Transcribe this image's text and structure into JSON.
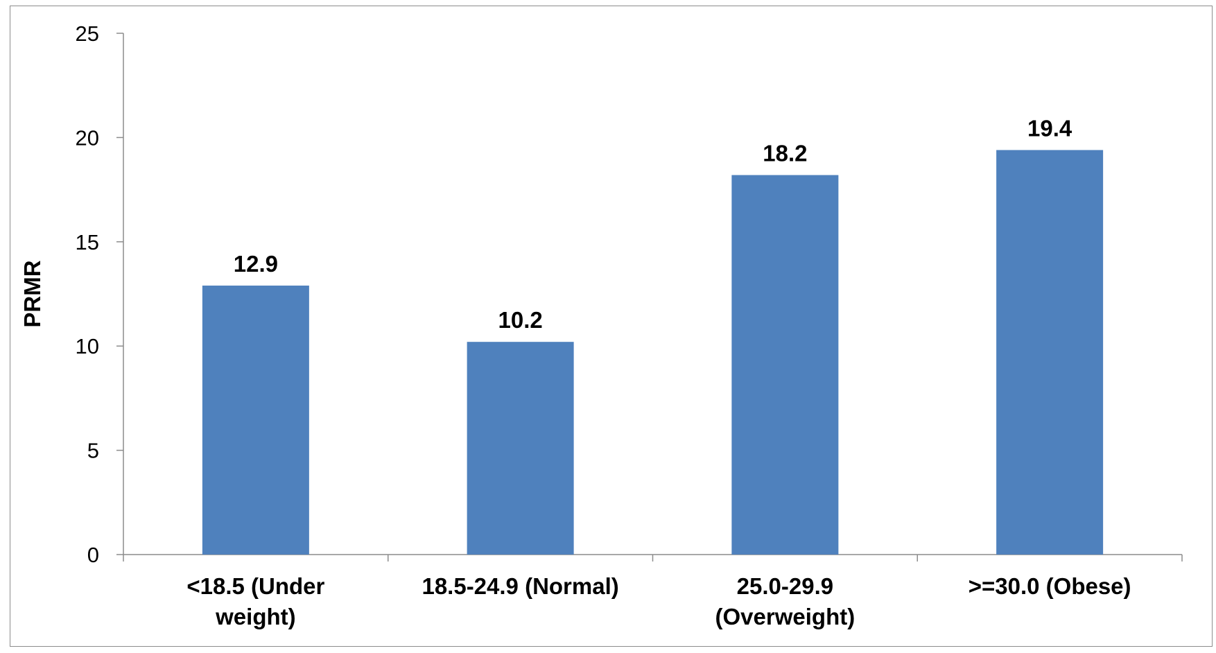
{
  "chart_data": {
    "type": "bar",
    "categories": [
      [
        "<18.5 (Under",
        "weight)"
      ],
      [
        "18.5-24.9 (Normal)"
      ],
      [
        "25.0-29.9",
        "(Overweight)"
      ],
      [
        ">=30.0 (Obese)"
      ]
    ],
    "values": [
      12.9,
      10.2,
      18.2,
      19.4
    ],
    "value_labels": [
      "12.9",
      "10.2",
      "18.2",
      "19.4"
    ],
    "title": "",
    "xlabel": "",
    "ylabel": "PRMR",
    "ylim": [
      0,
      25
    ],
    "yticks": [
      0,
      5,
      10,
      15,
      20,
      25
    ],
    "grid": false,
    "legend": "none",
    "bar_color": "#4f81bd"
  }
}
